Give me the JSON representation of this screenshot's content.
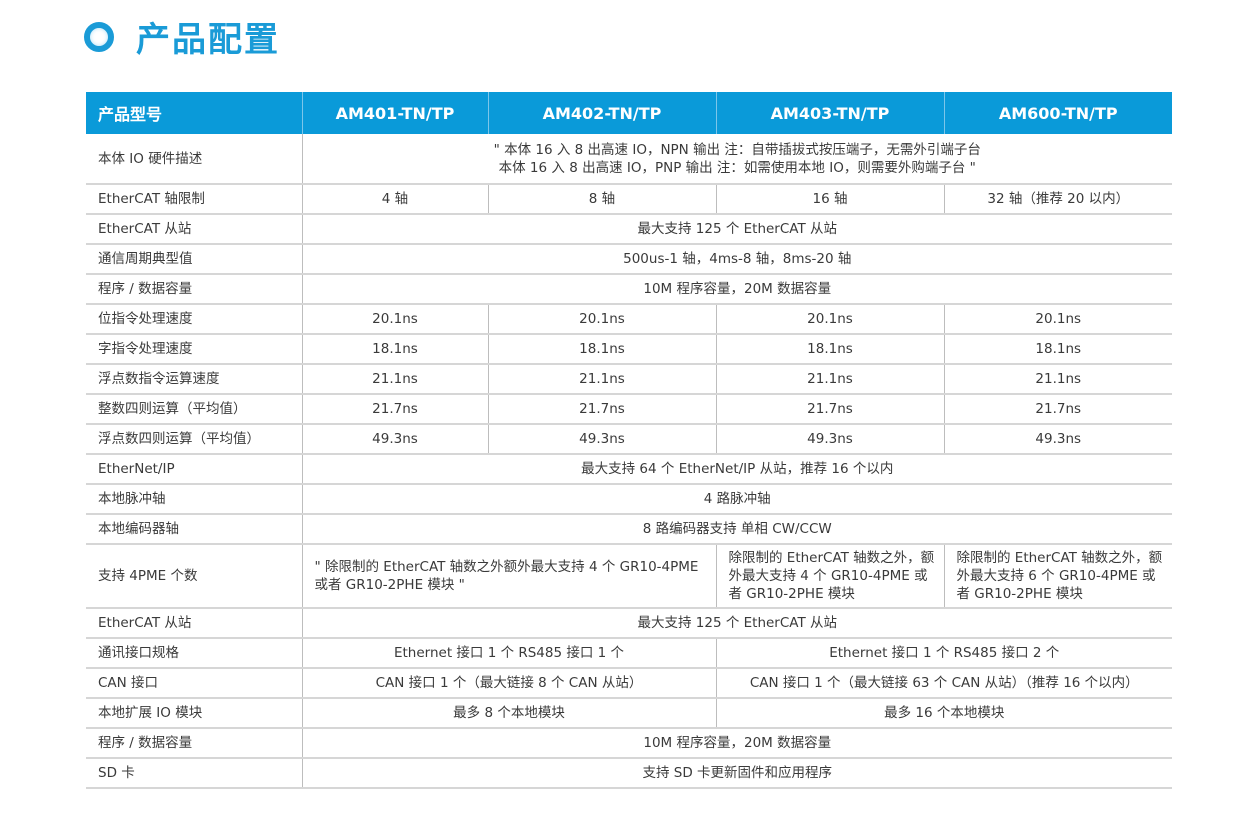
{
  "title": "产品配置",
  "header": [
    "产品型号",
    "AM401-TN/TP",
    "AM402-TN/TP",
    "AM403-TN/TP",
    "AM600-TN/TP"
  ],
  "rows": {
    "io": {
      "label": "本体 IO 硬件描述",
      "line1": "\" 本体 16 入 8 出高速 IO，NPN 输出 注：自带插拔式按压端子，无需外引端子台",
      "line2": "本体 16 入 8 出高速 IO，PNP 输出 注：如需使用本地 IO，则需要外购端子台 \""
    },
    "axis": {
      "label": "EtherCAT 轴限制",
      "values": [
        "4 轴",
        "8 轴",
        "16 轴",
        "32 轴（推荐 20 以内）"
      ]
    },
    "slave": {
      "label": "EtherCAT 从站",
      "value": "最大支持 125 个 EtherCAT 从站"
    },
    "cycle": {
      "label": "通信周期典型值",
      "value": "500us-1 轴，4ms-8 轴，8ms-20 轴"
    },
    "mem": {
      "label": "程序 / 数据容量",
      "value": "10M 程序容量，20M 数据容量"
    },
    "bit": {
      "label": "位指令处理速度",
      "value": "20.1ns"
    },
    "word": {
      "label": "字指令处理速度",
      "value": "18.1ns"
    },
    "float": {
      "label": "浮点数指令运算速度",
      "value": "21.1ns"
    },
    "int4": {
      "label": "整数四则运算（平均值）",
      "value": "21.7ns"
    },
    "float4": {
      "label": "浮点数四则运算（平均值）",
      "value": "49.3ns"
    },
    "enip": {
      "label": "EtherNet/IP",
      "value": "最大支持 64 个 EtherNet/IP 从站，推荐 16 个以内"
    },
    "pulse": {
      "label": "本地脉冲轴",
      "value": "4 路脉冲轴"
    },
    "enc": {
      "label": "本地编码器轴",
      "value": "8 路编码器支持 单相 CW/CCW"
    },
    "pme": {
      "label": "支持 4PME 个数",
      "a": "\" 除限制的 EtherCAT 轴数之外额外最大支持 4 个 GR10-4PME 或者 GR10-2PHE 模块 \"",
      "b": "除限制的 EtherCAT 轴数之外，额外最大支持 4 个 GR10-4PME 或者 GR10-2PHE 模块",
      "c": "除限制的 EtherCAT 轴数之外，额外最大支持 6 个 GR10-4PME 或者 GR10-2PHE 模块"
    },
    "slave2": {
      "label": "EtherCAT 从站",
      "value": "最大支持 125 个 EtherCAT 从站"
    },
    "comm": {
      "label": "通讯接口规格",
      "a": "Ethernet 接口 1 个  RS485 接口 1 个",
      "b": "Ethernet 接口 1 个  RS485 接口 2 个"
    },
    "can": {
      "label": "CAN 接口",
      "a": "CAN 接口 1 个（最大链接 8 个 CAN 从站）",
      "b": "CAN 接口 1 个（最大链接 63 个 CAN 从站）（推荐 16 个以内）"
    },
    "ext": {
      "label": "本地扩展 IO 模块",
      "a": "最多 8 个本地模块",
      "b": "最多 16 个本地模块"
    },
    "mem2": {
      "label": "程序 / 数据容量",
      "value": "10M 程序容量，20M 数据容量"
    },
    "sd": {
      "label": "SD 卡",
      "value": "支持 SD 卡更新固件和应用程序"
    }
  }
}
